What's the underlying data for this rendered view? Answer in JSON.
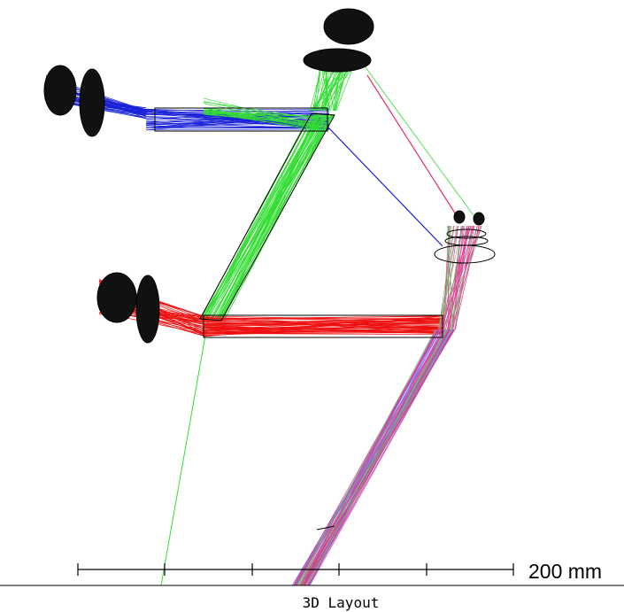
{
  "scale_bar": {
    "label": "200 mm"
  },
  "footer": {
    "title": "3D Layout"
  }
}
